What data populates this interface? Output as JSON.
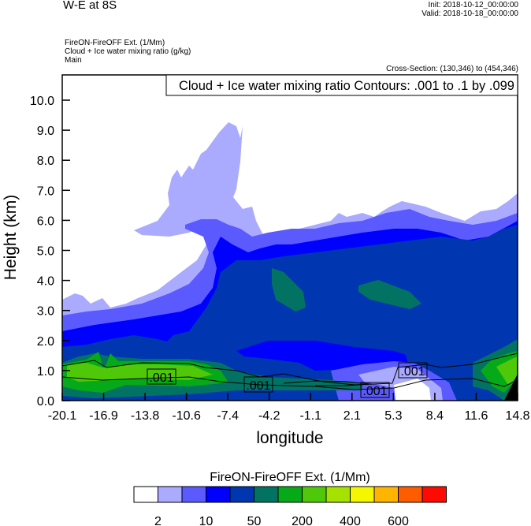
{
  "header": {
    "title": "W-E at 8S",
    "init": "Init: 2018-10-12_00:00:00",
    "valid": "Valid: 2018-10-18_00:00:00",
    "subtitle_lines": [
      "FireON-FireOFF Ext.   (1/Mm)",
      "Cloud + Ice water mixing ratio   (g/kg)",
      "Main"
    ],
    "cross_section": "Cross-Section: (130,346) to (454,346)"
  },
  "chart_data": {
    "type": "heatmap",
    "xlabel": "longitude",
    "ylabel": "Height (km)",
    "xlim": [
      -20.1,
      14.8
    ],
    "ylim": [
      0,
      10.84
    ],
    "x_ticks": [
      "-20.1",
      "-16.9",
      "-13.8",
      "-10.6",
      "-7.4",
      "-4.2",
      "-1.1",
      "2.1",
      "5.3",
      "8.4",
      "11.6",
      "14.8"
    ],
    "y_ticks": [
      "0.0",
      "1.0",
      "2.0",
      "3.0",
      "4.0",
      "5.0",
      "6.0",
      "7.0",
      "8.0",
      "9.0",
      "10.0"
    ],
    "contour_info": "Cloud + Ice water mixing ratio Contours: .001 to .1 by .099",
    "contour_labels": [
      ".001",
      ".001",
      ".001",
      ".001"
    ],
    "colorbar": {
      "title": "FireON-FireOFF Ext.  (1/Mm)",
      "colors": [
        "#ffffff",
        "#aaaaff",
        "#5a5aff",
        "#0000ff",
        "#0036b0",
        "#027363",
        "#06aa18",
        "#50c80a",
        "#a6e200",
        "#f4f700",
        "#ffb400",
        "#ff5c00",
        "#ff0a00"
      ],
      "labels": [
        {
          "after_box": 1,
          "text": "2"
        },
        {
          "after_box": 3,
          "text": "10"
        },
        {
          "after_box": 5,
          "text": "50"
        },
        {
          "after_box": 7,
          "text": "200"
        },
        {
          "after_box": 9,
          "text": "400"
        },
        {
          "after_box": 11,
          "text": "600"
        }
      ]
    }
  }
}
